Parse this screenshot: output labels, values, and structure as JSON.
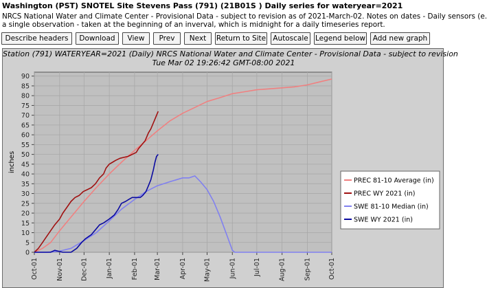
{
  "header": {
    "title": "Washington (PST) SNOTEL Site Stevens Pass (791) (21B01S ) Daily series for wateryear=2021",
    "description_line1": "NRCS National Water and Climate Center - Provisional Data - subject to revision as of 2021-March-02. Notes on dates - Daily sensors (e.",
    "description_line2": "a single observation - taken at the beginning of an inverval, which is midnight for a daily timeseries report."
  },
  "toolbar": {
    "describe_headers": "Describe headers",
    "download": "Download",
    "view": "View",
    "prev": "Prev",
    "next": "Next",
    "return_to_site": "Return to Site",
    "autoscale": "Autoscale",
    "legend_below": "Legend below",
    "add_new_graph": "Add new graph"
  },
  "colors": {
    "prec_avg": "#f08080",
    "prec_wy": "#a01010",
    "swe_median": "#8080f0",
    "swe_wy": "#0a0aa0",
    "plot_bg": "#c0c0c0",
    "frame_bg": "#d0d0d0"
  },
  "chart_data": {
    "type": "line",
    "title": "Station (791) WATERYEAR=2021 (Daily) NRCS National Water and Climate Center - Provisional Data - subject to revision",
    "subtitle": "Tue Mar 02 19:26:42 GMT-08:00 2021",
    "ylabel": "inches",
    "xlabel": "",
    "ylim": [
      0,
      92
    ],
    "yticks": [
      0,
      5,
      10,
      15,
      20,
      25,
      30,
      35,
      40,
      45,
      50,
      55,
      60,
      65,
      70,
      75,
      80,
      85,
      90
    ],
    "xticks": [
      {
        "label": "Oct-01",
        "day": 0
      },
      {
        "label": "Nov-01",
        "day": 31
      },
      {
        "label": "Dec-01",
        "day": 61
      },
      {
        "label": "Jan-01",
        "day": 92
      },
      {
        "label": "Feb-01",
        "day": 123
      },
      {
        "label": "Mar-01",
        "day": 151
      },
      {
        "label": "Apr-01",
        "day": 182
      },
      {
        "label": "May-01",
        "day": 212
      },
      {
        "label": "Jun-01",
        "day": 243
      },
      {
        "label": "Jul-01",
        "day": 273
      },
      {
        "label": "Aug-01",
        "day": 304
      },
      {
        "label": "Sep-01",
        "day": 335
      },
      {
        "label": "Oct-01",
        "day": 365
      }
    ],
    "grid": true,
    "legend_position": "right",
    "series": [
      {
        "name": "PREC 81-10 Average (in)",
        "color_key": "prec_avg",
        "points": [
          [
            0,
            0
          ],
          [
            10,
            2
          ],
          [
            20,
            5
          ],
          [
            31,
            11
          ],
          [
            45,
            18
          ],
          [
            61,
            26
          ],
          [
            76,
            33
          ],
          [
            92,
            40
          ],
          [
            107,
            46
          ],
          [
            123,
            52
          ],
          [
            137,
            57
          ],
          [
            151,
            62
          ],
          [
            166,
            67
          ],
          [
            182,
            71
          ],
          [
            197,
            74
          ],
          [
            212,
            77
          ],
          [
            228,
            79
          ],
          [
            243,
            81
          ],
          [
            258,
            82
          ],
          [
            273,
            83
          ],
          [
            289,
            83.5
          ],
          [
            304,
            84
          ],
          [
            319,
            84.5
          ],
          [
            335,
            85.5
          ],
          [
            350,
            87
          ],
          [
            365,
            88.5
          ]
        ]
      },
      {
        "name": "PREC WY 2021  (in)",
        "color_key": "prec_wy",
        "points": [
          [
            0,
            0
          ],
          [
            5,
            2
          ],
          [
            10,
            5
          ],
          [
            15,
            8
          ],
          [
            20,
            11
          ],
          [
            25,
            14
          ],
          [
            31,
            17
          ],
          [
            35,
            20
          ],
          [
            40,
            23
          ],
          [
            45,
            26
          ],
          [
            50,
            28
          ],
          [
            55,
            29
          ],
          [
            60,
            31
          ],
          [
            65,
            32
          ],
          [
            70,
            33
          ],
          [
            75,
            35
          ],
          [
            80,
            38
          ],
          [
            85,
            40
          ],
          [
            88,
            43
          ],
          [
            92,
            45
          ],
          [
            96,
            46
          ],
          [
            100,
            47
          ],
          [
            105,
            48
          ],
          [
            110,
            48.5
          ],
          [
            115,
            49
          ],
          [
            120,
            50
          ],
          [
            125,
            51
          ],
          [
            128,
            53
          ],
          [
            132,
            55
          ],
          [
            136,
            57
          ],
          [
            140,
            61
          ],
          [
            143,
            63
          ],
          [
            146,
            66
          ],
          [
            148,
            68
          ],
          [
            150,
            70
          ],
          [
            152,
            72
          ]
        ]
      },
      {
        "name": "SWE 81-10 Median (in)",
        "color_key": "swe_median",
        "points": [
          [
            0,
            0
          ],
          [
            15,
            0
          ],
          [
            30,
            0.5
          ],
          [
            45,
            2
          ],
          [
            61,
            6
          ],
          [
            76,
            10
          ],
          [
            92,
            16
          ],
          [
            107,
            22
          ],
          [
            123,
            27
          ],
          [
            137,
            31
          ],
          [
            151,
            34
          ],
          [
            166,
            36
          ],
          [
            182,
            38
          ],
          [
            190,
            38
          ],
          [
            197,
            39
          ],
          [
            204,
            36
          ],
          [
            212,
            32
          ],
          [
            220,
            26
          ],
          [
            228,
            18
          ],
          [
            236,
            9
          ],
          [
            243,
            1
          ],
          [
            246,
            0
          ],
          [
            365,
            0
          ]
        ]
      },
      {
        "name": "SWE WY 2021  (in)",
        "color_key": "swe_wy",
        "points": [
          [
            0,
            0
          ],
          [
            20,
            0
          ],
          [
            25,
            1
          ],
          [
            30,
            0.5
          ],
          [
            35,
            0
          ],
          [
            45,
            0
          ],
          [
            52,
            2
          ],
          [
            58,
            5
          ],
          [
            63,
            7
          ],
          [
            70,
            9
          ],
          [
            76,
            12
          ],
          [
            80,
            14
          ],
          [
            85,
            15
          ],
          [
            92,
            17
          ],
          [
            98,
            19
          ],
          [
            103,
            22
          ],
          [
            107,
            25
          ],
          [
            112,
            26
          ],
          [
            116,
            27
          ],
          [
            120,
            28
          ],
          [
            125,
            28
          ],
          [
            130,
            28
          ],
          [
            133,
            29
          ],
          [
            137,
            31
          ],
          [
            140,
            34
          ],
          [
            143,
            37
          ],
          [
            146,
            42
          ],
          [
            148,
            46
          ],
          [
            150,
            49
          ],
          [
            152,
            50
          ]
        ]
      }
    ]
  }
}
